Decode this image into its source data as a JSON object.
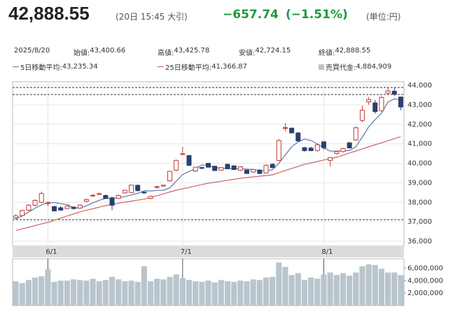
{
  "header": {
    "price": "42,888.55",
    "time": "(20日 15:45 大引)",
    "change": "−657.74",
    "change_pct": "(−1.51%)",
    "unit": "(単位:円)"
  },
  "info": {
    "date": "2025/8/20",
    "items": [
      {
        "label": "始値:",
        "value": "43,400.66"
      },
      {
        "label": "高値:",
        "value": "43,425.78"
      },
      {
        "label": "安値:",
        "value": "42,724.15"
      },
      {
        "label": "終値:",
        "value": "42,888.55"
      }
    ]
  },
  "chart_data": {
    "type": "candlestick",
    "xlim": [
      -0.5,
      60.5
    ],
    "xticks": [
      {
        "value": 5,
        "label": "6/1"
      },
      {
        "value": 26,
        "label": "7/1"
      },
      {
        "value": 48,
        "label": "8/1"
      }
    ],
    "ylim": [
      35750,
      44180
    ],
    "yticks": [
      {
        "value": 36000,
        "label": "36,000"
      },
      {
        "value": 37000,
        "label": "37,000"
      },
      {
        "value": 38000,
        "label": "38,000"
      },
      {
        "value": 39000,
        "label": "39,000"
      },
      {
        "value": 40000,
        "label": "40,000"
      },
      {
        "value": 41000,
        "label": "41,000"
      },
      {
        "value": 42000,
        "label": "42,000"
      },
      {
        "value": 43000,
        "label": "43,000"
      },
      {
        "value": 44000,
        "label": "44,000"
      }
    ],
    "grid": true,
    "hlines": [
      43890,
      43530,
      37110
    ],
    "up_color": "#c23b3b",
    "down_color": "#2b3f6e",
    "open": [
      37200,
      37320,
      37600,
      37850,
      38000,
      37950,
      37780,
      37720,
      37680,
      37750,
      37700,
      38050,
      38350,
      38430,
      38350,
      38230,
      38200,
      38480,
      38500,
      38870,
      38520,
      38200,
      38780,
      38830,
      39100,
      39650,
      40480,
      40400,
      39600,
      39780,
      40000,
      39850,
      39650,
      39950,
      39870,
      39650,
      39650,
      39550,
      39650,
      39500,
      39950,
      40150,
      41820,
      41800,
      41560,
      40800,
      40780,
      40660,
      41100,
      40150,
      40500,
      40600,
      41050,
      41200,
      42200,
      43150,
      43100,
      42700,
      43600,
      43700,
      43400.66
    ],
    "high": [
      37380,
      37620,
      37900,
      38150,
      38550,
      38050,
      37820,
      37800,
      37850,
      37800,
      37900,
      38200,
      38420,
      38500,
      38400,
      38300,
      38400,
      38650,
      38900,
      38920,
      38560,
      38350,
      38850,
      38900,
      39620,
      40200,
      40850,
      40420,
      39820,
      39830,
      40020,
      39880,
      39800,
      39980,
      39900,
      39850,
      39700,
      39700,
      39700,
      39950,
      40000,
      41250,
      42050,
      41850,
      41600,
      40850,
      40850,
      41000,
      41150,
      40300,
      40650,
      40800,
      41100,
      41900,
      42950,
      43400,
      43250,
      43450,
      43880,
      43890,
      43425.78
    ],
    "low": [
      37120,
      37280,
      37550,
      37800,
      37950,
      37800,
      37520,
      37560,
      37650,
      37620,
      37680,
      38000,
      38280,
      38380,
      38170,
      37600,
      38150,
      38450,
      38480,
      38550,
      38430,
      38150,
      38700,
      38800,
      39050,
      39600,
      40420,
      39850,
      39550,
      39700,
      39780,
      39600,
      39620,
      39700,
      39650,
      39600,
      39450,
      39520,
      39450,
      39480,
      39750,
      40100,
      41650,
      41550,
      41100,
      40600,
      40620,
      40600,
      40700,
      39850,
      40450,
      40550,
      40750,
      41150,
      42100,
      43000,
      42550,
      42650,
      43550,
      43450,
      42724.15
    ],
    "close": [
      37300,
      37580,
      37850,
      38100,
      38450,
      37970,
      37560,
      37600,
      37800,
      37680,
      37860,
      38140,
      38360,
      38440,
      38200,
      37850,
      38350,
      38620,
      38880,
      38600,
      38480,
      38300,
      38800,
      38880,
      39590,
      40150,
      40490,
      39900,
      39800,
      39760,
      39800,
      39630,
      39780,
      39720,
      39680,
      39820,
      39480,
      39680,
      39480,
      39900,
      39780,
      41170,
      41830,
      41560,
      41150,
      40650,
      40650,
      40950,
      40800,
      40290,
      40600,
      40750,
      40790,
      41820,
      42720,
      43270,
      42650,
      43380,
      43714,
      43546,
      42888.55
    ],
    "lines": [
      {
        "name": "5日移動平均:",
        "value_label": "43,235.34",
        "color": "#5a78a8",
        "values": [
          37150,
          37300,
          37500,
          37700,
          37860,
          37990,
          37990,
          37930,
          37880,
          37720,
          37700,
          37820,
          37970,
          38100,
          38200,
          38200,
          38250,
          38290,
          38380,
          38460,
          38590,
          38580,
          38610,
          38620,
          38740,
          39080,
          39420,
          39580,
          39720,
          39920,
          39900,
          39780,
          39750,
          39740,
          39720,
          39730,
          39700,
          39680,
          39630,
          39610,
          39670,
          40000,
          40430,
          40850,
          41100,
          41250,
          41170,
          40990,
          40800,
          40630,
          40620,
          40650,
          40650,
          40850,
          41340,
          41870,
          42240,
          42570,
          43147,
          43312,
          43235.34
        ]
      },
      {
        "name": "25日移動平均:",
        "value_label": "41,366.87",
        "color": "#d06464",
        "values": [
          36550,
          36640,
          36720,
          36810,
          36890,
          36970,
          37080,
          37190,
          37300,
          37400,
          37510,
          37590,
          37670,
          37750,
          37830,
          37900,
          37950,
          38010,
          38060,
          38110,
          38160,
          38250,
          38340,
          38430,
          38530,
          38620,
          38690,
          38760,
          38840,
          38910,
          38980,
          39030,
          39080,
          39130,
          39180,
          39230,
          39270,
          39300,
          39340,
          39370,
          39410,
          39520,
          39630,
          39740,
          39840,
          39950,
          40020,
          40090,
          40170,
          40240,
          40310,
          40420,
          40530,
          40630,
          40740,
          40850,
          40950,
          41050,
          41160,
          41260,
          41366.87
        ]
      }
    ],
    "volume": {
      "name": "売買代金:",
      "value_label": "4,884,909",
      "color": "#b9c5cd",
      "ylim": [
        0,
        7500000
      ],
      "yticks": [
        {
          "value": 2000000,
          "label": "2,000,000"
        },
        {
          "value": 4000000,
          "label": "4,000,000"
        },
        {
          "value": 6000000,
          "label": "6,000,000"
        }
      ],
      "values": [
        3900000,
        3600000,
        4100000,
        4500000,
        4700000,
        5800000,
        3800000,
        4000000,
        4000000,
        4200000,
        4100000,
        4000000,
        4300000,
        3900000,
        4100000,
        4600000,
        4200000,
        3900000,
        4000000,
        3800000,
        6300000,
        3900000,
        4300000,
        4200000,
        4600000,
        5000000,
        4400000,
        4100000,
        3900000,
        3800000,
        4000000,
        3700000,
        4100000,
        3900000,
        3800000,
        4000000,
        3900000,
        4200000,
        4100000,
        4500000,
        4600000,
        6900000,
        6200000,
        4900000,
        5200000,
        4100000,
        4500000,
        4300000,
        5000000,
        5300000,
        4900000,
        5200000,
        4800000,
        5300000,
        6300000,
        6600000,
        6500000,
        5900000,
        5300000,
        5300000,
        4884909
      ]
    }
  }
}
